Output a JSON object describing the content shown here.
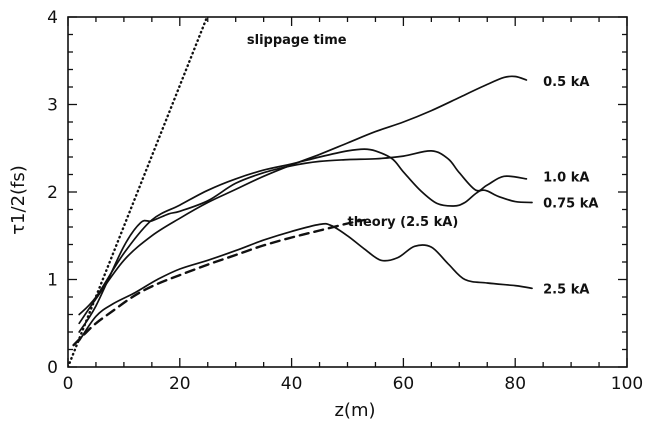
{
  "chart_data": {
    "type": "line",
    "title": "",
    "xlabel": "z(m)",
    "ylabel": "τ1/2(fs)",
    "xlim": [
      0,
      100
    ],
    "ylim": [
      0,
      4
    ],
    "xticks": [
      0,
      20,
      40,
      60,
      80,
      100
    ],
    "yticks": [
      0,
      1,
      2,
      3,
      4
    ],
    "grid": false,
    "series": [
      {
        "name": "0.5 kA",
        "style": "solid",
        "x": [
          2,
          5,
          10,
          15,
          20,
          25,
          30,
          35,
          40,
          45,
          50,
          55,
          60,
          65,
          70,
          75,
          78,
          80,
          82
        ],
        "y": [
          0.5,
          0.78,
          1.22,
          1.5,
          1.7,
          1.88,
          2.03,
          2.18,
          2.31,
          2.43,
          2.56,
          2.69,
          2.8,
          2.93,
          3.08,
          3.23,
          3.31,
          3.32,
          3.28
        ]
      },
      {
        "name": "1.0 kA",
        "style": "solid",
        "x": [
          2,
          5,
          10,
          13,
          15,
          18,
          20,
          25,
          30,
          35,
          40,
          45,
          50,
          55,
          60,
          65,
          68,
          70,
          73,
          75,
          78,
          82
        ],
        "y": [
          0.4,
          0.7,
          1.38,
          1.65,
          1.67,
          1.75,
          1.78,
          1.9,
          2.1,
          2.22,
          2.3,
          2.35,
          2.37,
          2.38,
          2.41,
          2.47,
          2.38,
          2.22,
          2.02,
          2.08,
          2.18,
          2.15
        ]
      },
      {
        "name": "0.75 kA",
        "style": "solid",
        "x": [
          2,
          5,
          10,
          15,
          20,
          25,
          30,
          35,
          40,
          45,
          50,
          53,
          55,
          58,
          60,
          63,
          66,
          69,
          71,
          74,
          77,
          80,
          83
        ],
        "y": [
          0.6,
          0.8,
          1.3,
          1.68,
          1.85,
          2.02,
          2.15,
          2.25,
          2.32,
          2.4,
          2.47,
          2.49,
          2.47,
          2.38,
          2.23,
          2.02,
          1.87,
          1.84,
          1.88,
          2.02,
          1.95,
          1.89,
          1.88
        ]
      },
      {
        "name": "2.5 kA",
        "style": "solid",
        "x": [
          2,
          5,
          8,
          12,
          16,
          20,
          25,
          30,
          35,
          40,
          45,
          47,
          50,
          53,
          56,
          59,
          62,
          65,
          68,
          71,
          75,
          80,
          83
        ],
        "y": [
          0.3,
          0.58,
          0.72,
          0.85,
          1.0,
          1.12,
          1.22,
          1.33,
          1.45,
          1.55,
          1.63,
          1.62,
          1.5,
          1.35,
          1.22,
          1.25,
          1.38,
          1.37,
          1.18,
          1.0,
          0.96,
          0.93,
          0.9
        ]
      },
      {
        "name": "theory (2.5 kA)",
        "style": "dashed",
        "x": [
          1,
          3,
          5,
          8,
          12,
          16,
          20,
          25,
          30,
          35,
          40,
          45,
          50,
          53
        ],
        "y": [
          0.25,
          0.38,
          0.5,
          0.64,
          0.82,
          0.95,
          1.05,
          1.17,
          1.28,
          1.39,
          1.48,
          1.56,
          1.64,
          1.68
        ]
      },
      {
        "name": "slippage time",
        "style": "dotted",
        "x": [
          0,
          25.5
        ],
        "y": [
          0,
          4.1
        ]
      }
    ],
    "annotations": [
      {
        "text": "slippage time",
        "x": 32,
        "y": 3.75
      },
      {
        "text": "0.5 kA",
        "x": 85,
        "y": 3.27
      },
      {
        "text": "1.0 kA",
        "x": 85,
        "y": 2.18
      },
      {
        "text": "0.75 kA",
        "x": 85,
        "y": 1.88
      },
      {
        "text": "theory (2.5 kA)",
        "x": 50,
        "y": 1.67
      },
      {
        "text": "2.5 kA",
        "x": 85,
        "y": 0.9
      }
    ]
  }
}
